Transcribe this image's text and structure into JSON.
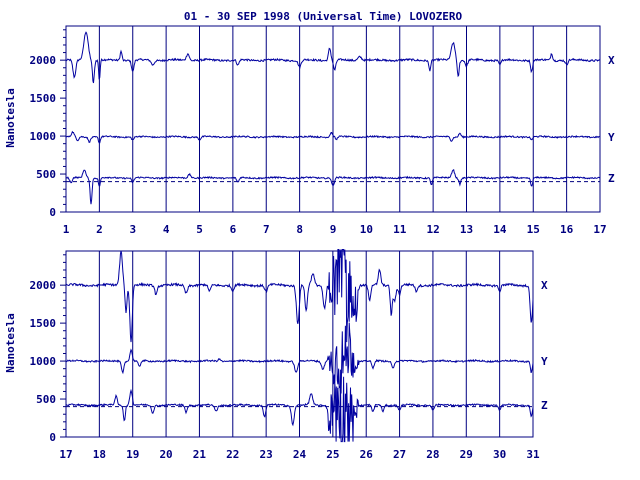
{
  "title": "01 - 30 SEP 1998 (Universal Time) LOVOZERO",
  "colors": {
    "trace": "#0000a0",
    "frame": "#000080",
    "text": "#000080",
    "background": "#ffffff"
  },
  "chart_data": [
    {
      "type": "line",
      "panel": "top",
      "ylabel": "Nanotesla",
      "ylim": [
        0,
        2450
      ],
      "yticks": [
        0,
        500,
        1000,
        1500,
        2000
      ],
      "xlim": [
        1,
        17
      ],
      "xticks": [
        "1",
        "2",
        "3",
        "4",
        "5",
        "6",
        "7",
        "8",
        "9",
        "10",
        "11",
        "12",
        "13",
        "14",
        "15",
        "16",
        "17"
      ],
      "reference_line": {
        "y": 400,
        "style": "dashed"
      },
      "grid": "vertical day lines",
      "series": [
        {
          "name": "X",
          "baseline": 2000,
          "noise": 12,
          "events": [
            [
              1.25,
              -230,
              0.06
            ],
            [
              1.6,
              380,
              0.09
            ],
            [
              1.82,
              -300,
              0.04
            ],
            [
              2.0,
              -260,
              0.03
            ],
            [
              2.65,
              120,
              0.04
            ],
            [
              3.0,
              -150,
              0.05
            ],
            [
              3.6,
              -60,
              0.06
            ],
            [
              4.65,
              90,
              0.06
            ],
            [
              6.15,
              -70,
              0.05
            ],
            [
              8.0,
              -90,
              0.06
            ],
            [
              8.9,
              160,
              0.05
            ],
            [
              9.05,
              -130,
              0.05
            ],
            [
              9.8,
              50,
              0.08
            ],
            [
              11.9,
              -130,
              0.04
            ],
            [
              12.6,
              230,
              0.08
            ],
            [
              12.75,
              -220,
              0.04
            ],
            [
              13.0,
              -80,
              0.05
            ],
            [
              14.0,
              -60,
              0.05
            ],
            [
              14.95,
              -150,
              0.04
            ],
            [
              15.55,
              90,
              0.04
            ],
            [
              16.0,
              -60,
              0.05
            ]
          ]
        },
        {
          "name": "Y",
          "baseline": 990,
          "noise": 9,
          "events": [
            [
              1.2,
              60,
              0.05
            ],
            [
              1.35,
              -50,
              0.05
            ],
            [
              1.7,
              -60,
              0.05
            ],
            [
              2.0,
              -80,
              0.04
            ],
            [
              3.0,
              -40,
              0.05
            ],
            [
              5.0,
              -40,
              0.05
            ],
            [
              8.95,
              60,
              0.05
            ],
            [
              9.1,
              -40,
              0.04
            ],
            [
              12.55,
              -50,
              0.05
            ],
            [
              12.8,
              50,
              0.05
            ],
            [
              14.95,
              -40,
              0.04
            ]
          ]
        },
        {
          "name": "Z",
          "baseline": 450,
          "noise": 9,
          "events": [
            [
              1.15,
              -70,
              0.05
            ],
            [
              1.55,
              110,
              0.06
            ],
            [
              1.75,
              -340,
              0.04
            ],
            [
              2.0,
              -110,
              0.04
            ],
            [
              3.0,
              -60,
              0.05
            ],
            [
              4.7,
              50,
              0.06
            ],
            [
              6.15,
              -60,
              0.05
            ],
            [
              9.0,
              -110,
              0.05
            ],
            [
              11.95,
              -90,
              0.04
            ],
            [
              12.6,
              110,
              0.06
            ],
            [
              12.8,
              -80,
              0.04
            ],
            [
              14.95,
              -110,
              0.04
            ]
          ]
        }
      ]
    },
    {
      "type": "line",
      "panel": "bottom",
      "ylabel": "Nanotesla",
      "ylim": [
        0,
        2450
      ],
      "yticks": [
        0,
        500,
        1000,
        1500,
        2000
      ],
      "xlim": [
        17,
        31
      ],
      "xticks": [
        "17",
        "18",
        "19",
        "20",
        "21",
        "22",
        "23",
        "24",
        "25",
        "26",
        "27",
        "28",
        "29",
        "30",
        "31"
      ],
      "reference_line": {
        "y": 400,
        "style": "dashed"
      },
      "grid": "vertical day lines",
      "series": [
        {
          "name": "X",
          "baseline": 2000,
          "noise": 14,
          "events": [
            [
              18.65,
              450,
              0.06
            ],
            [
              18.8,
              -350,
              0.04
            ],
            [
              18.95,
              -750,
              0.05
            ],
            [
              19.7,
              -120,
              0.05
            ],
            [
              20.6,
              -100,
              0.06
            ],
            [
              21.3,
              -80,
              0.06
            ],
            [
              22.0,
              -70,
              0.06
            ],
            [
              23.0,
              -80,
              0.06
            ],
            [
              23.95,
              -500,
              0.06
            ],
            [
              24.2,
              -350,
              0.05
            ],
            [
              24.4,
              150,
              0.06
            ],
            [
              24.75,
              -300,
              0.06
            ],
            [
              25.2,
              400,
              0.08
            ],
            [
              25.45,
              -400,
              0.05
            ],
            [
              25.7,
              -350,
              0.05
            ],
            [
              26.1,
              -200,
              0.05
            ],
            [
              26.4,
              200,
              0.05
            ],
            [
              26.75,
              -380,
              0.04
            ],
            [
              26.85,
              -200,
              0.06
            ],
            [
              27.0,
              -120,
              0.05
            ],
            [
              27.5,
              -80,
              0.05
            ],
            [
              30.0,
              -80,
              0.05
            ],
            [
              30.95,
              -500,
              0.05
            ]
          ]
        },
        {
          "name": "Y",
          "baseline": 1000,
          "noise": 10,
          "events": [
            [
              18.7,
              -150,
              0.05
            ],
            [
              18.95,
              150,
              0.05
            ],
            [
              19.2,
              -80,
              0.05
            ],
            [
              21.6,
              30,
              0.05
            ],
            [
              23.9,
              -150,
              0.06
            ],
            [
              24.7,
              -100,
              0.06
            ],
            [
              25.5,
              200,
              0.08
            ],
            [
              26.2,
              -100,
              0.05
            ],
            [
              26.8,
              -90,
              0.05
            ],
            [
              30.95,
              -150,
              0.04
            ]
          ]
        },
        {
          "name": "Z",
          "baseline": 420,
          "noise": 10,
          "events": [
            [
              18.5,
              120,
              0.05
            ],
            [
              18.75,
              -200,
              0.04
            ],
            [
              18.95,
              200,
              0.05
            ],
            [
              19.6,
              -100,
              0.05
            ],
            [
              20.6,
              -90,
              0.05
            ],
            [
              21.5,
              -80,
              0.06
            ],
            [
              22.95,
              -150,
              0.05
            ],
            [
              23.8,
              -250,
              0.06
            ],
            [
              24.35,
              150,
              0.06
            ],
            [
              24.9,
              -300,
              0.05
            ],
            [
              25.3,
              -250,
              0.05
            ],
            [
              25.6,
              -400,
              0.05
            ],
            [
              26.2,
              -90,
              0.05
            ],
            [
              26.5,
              -80,
              0.05
            ],
            [
              27.0,
              -70,
              0.05
            ],
            [
              28.0,
              -60,
              0.05
            ],
            [
              30.0,
              -60,
              0.05
            ],
            [
              30.95,
              -150,
              0.04
            ]
          ]
        }
      ],
      "storm": {
        "from": 24.8,
        "to": 25.8,
        "amplitude": 700
      }
    }
  ]
}
